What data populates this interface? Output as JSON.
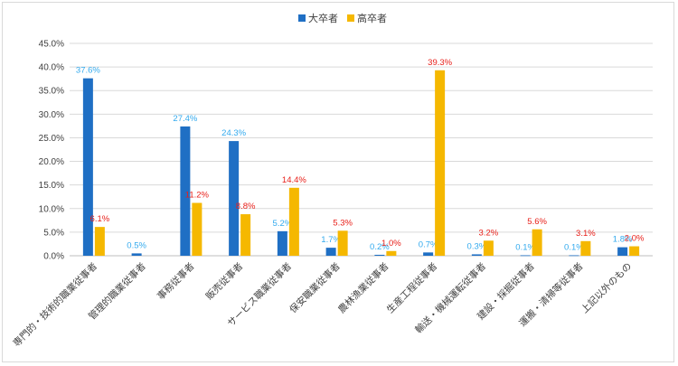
{
  "chart_data": {
    "type": "bar",
    "title": "",
    "xlabel": "",
    "ylabel": "",
    "ylim": [
      0,
      45
    ],
    "y_ticks": [
      "0.0%",
      "5.0%",
      "10.0%",
      "15.0%",
      "20.0%",
      "25.0%",
      "30.0%",
      "35.0%",
      "40.0%",
      "45.0%"
    ],
    "grid": true,
    "legend_position": "top-center",
    "categories": [
      "専門的・技術的職業従事者",
      "管理的職業従事者",
      "事務従事者",
      "販売従事者",
      "サービス職業従事者",
      "保安職業従事者",
      "農林漁業従事者",
      "生産工程従事者",
      "輸送・機械運転従事者",
      "建設・採掘従事者",
      "運搬・清掃等従事者",
      "上記以外のもの"
    ],
    "series": [
      {
        "name": "大卒者",
        "color": "#1f6fc4",
        "label_color": "#33aaee",
        "values": [
          37.6,
          0.5,
          27.4,
          24.3,
          5.2,
          1.7,
          0.2,
          0.7,
          0.3,
          0.1,
          0.1,
          1.8
        ],
        "labels": [
          "37.6%",
          "0.5%",
          "27.4%",
          "24.3%",
          "5.2%",
          "1.7%",
          "0.2%",
          "0.7%",
          "0.3%",
          "0.1%",
          "0.1%",
          "1.8%"
        ]
      },
      {
        "name": "高卒者",
        "color": "#f5b800",
        "label_color": "#e8201a",
        "values": [
          6.1,
          null,
          11.2,
          8.8,
          14.4,
          5.3,
          1.0,
          39.3,
          3.2,
          5.6,
          3.1,
          2.0
        ],
        "labels": [
          "6.1%",
          "",
          "11.2%",
          "8.8%",
          "14.4%",
          "5.3%",
          "1.0%",
          "39.3%",
          "3.2%",
          "5.6%",
          "3.1%",
          "2.0%"
        ]
      }
    ]
  }
}
